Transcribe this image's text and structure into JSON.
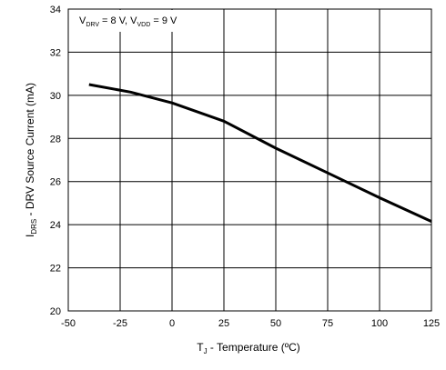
{
  "chart_data": {
    "type": "line",
    "title": "",
    "xlabel": {
      "main": "T",
      "sub": "J",
      "rest": " - Temperature  (ºC)"
    },
    "ylabel": {
      "main": "I",
      "sub": "DRS",
      "rest": " - DRV Source Current  (mA)"
    },
    "annotation": {
      "v1_main": "V",
      "v1_sub": "DRV",
      "v1_rest": " = 8 V,  ",
      "v2_main": "V",
      "v2_sub": "VDD",
      "v2_rest": " = 9 V"
    },
    "xlim": [
      -50,
      125
    ],
    "ylim": [
      20,
      34
    ],
    "xticks": [
      -50,
      -25,
      0,
      25,
      50,
      75,
      100,
      125
    ],
    "xtick_labels": [
      "-50",
      "-25",
      "0",
      "25",
      "50",
      "75",
      "100",
      "125"
    ],
    "yticks": [
      20,
      22,
      24,
      26,
      28,
      30,
      32,
      34
    ],
    "ytick_labels": [
      "20",
      "22",
      "24",
      "26",
      "28",
      "30",
      "32",
      "34"
    ],
    "grid": true,
    "legend": "none",
    "series": [
      {
        "x": [
          -40,
          -20,
          0,
          25,
          50,
          75,
          100,
          125
        ],
        "values": [
          30.5,
          30.15,
          29.65,
          28.8,
          27.55,
          26.4,
          25.25,
          24.15
        ],
        "color": "#000000"
      }
    ]
  }
}
